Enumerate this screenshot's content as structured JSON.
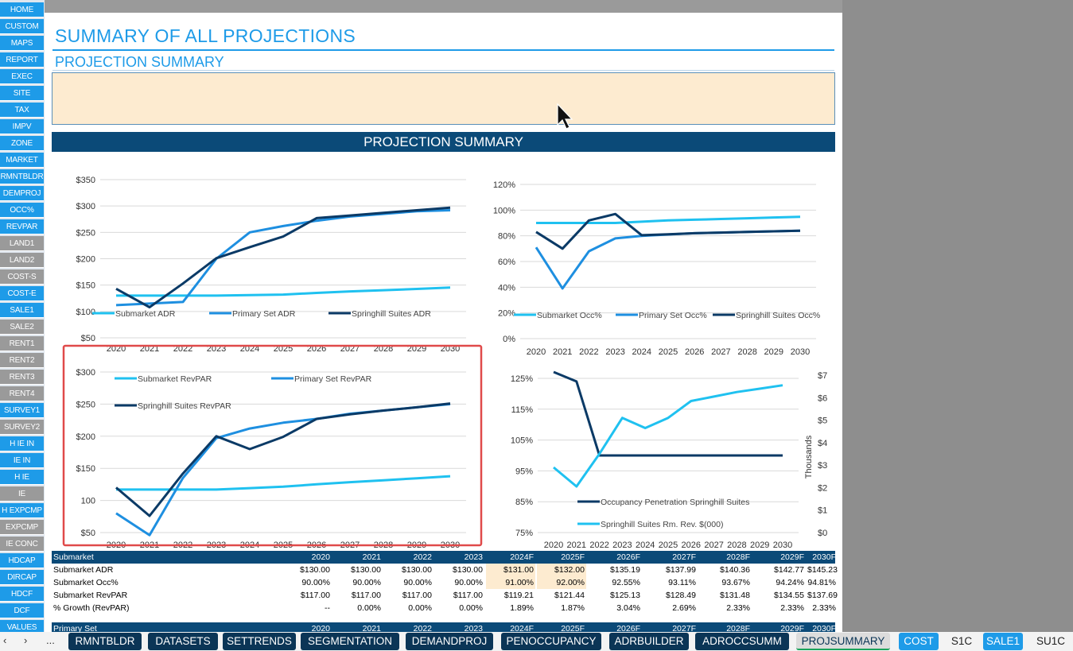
{
  "nav": [
    {
      "label": "HOME",
      "c": "blue"
    },
    {
      "label": "CUSTOM",
      "c": "blue"
    },
    {
      "label": "MAPS",
      "c": "blue"
    },
    {
      "label": "REPORT",
      "c": "blue"
    },
    {
      "label": "EXEC",
      "c": "blue"
    },
    {
      "label": "SITE",
      "c": "blue"
    },
    {
      "label": "TAX",
      "c": "blue"
    },
    {
      "label": "IMPV",
      "c": "blue"
    },
    {
      "label": "ZONE",
      "c": "blue"
    },
    {
      "label": "MARKET",
      "c": "blue"
    },
    {
      "label": "RMNTBLDR",
      "c": "blue"
    },
    {
      "label": "DEMPROJ",
      "c": "blue"
    },
    {
      "label": "OCC%",
      "c": "blue"
    },
    {
      "label": "REVPAR",
      "c": "blue"
    },
    {
      "label": "LAND1",
      "c": "gray"
    },
    {
      "label": "LAND2",
      "c": "gray"
    },
    {
      "label": "COST-S",
      "c": "gray"
    },
    {
      "label": "COST-E",
      "c": "blue"
    },
    {
      "label": "SALE1",
      "c": "blue"
    },
    {
      "label": "SALE2",
      "c": "gray"
    },
    {
      "label": "RENT1",
      "c": "gray"
    },
    {
      "label": "RENT2",
      "c": "gray"
    },
    {
      "label": "RENT3",
      "c": "gray"
    },
    {
      "label": "RENT4",
      "c": "gray"
    },
    {
      "label": "SURVEY1",
      "c": "blue"
    },
    {
      "label": "SURVEY2",
      "c": "gray"
    },
    {
      "label": "H IE IN",
      "c": "blue"
    },
    {
      "label": "IE IN",
      "c": "blue"
    },
    {
      "label": "H IE",
      "c": "blue"
    },
    {
      "label": "IE",
      "c": "gray"
    },
    {
      "label": "H EXPCMP",
      "c": "blue"
    },
    {
      "label": "EXPCMP",
      "c": "gray"
    },
    {
      "label": "IE CONC",
      "c": "gray"
    },
    {
      "label": "HDCAP",
      "c": "blue"
    },
    {
      "label": "DIRCAP",
      "c": "blue"
    },
    {
      "label": "HDCF",
      "c": "blue"
    },
    {
      "label": "DCF",
      "c": "blue"
    },
    {
      "label": "VALUES",
      "c": "blue"
    }
  ],
  "header": {
    "title": "SUMMARY OF ALL PROJECTIONS",
    "subtitle": "PROJECTION SUMMARY",
    "banner": "PROJECTION SUMMARY"
  },
  "colors": {
    "submarket": "#1fc1f0",
    "primary": "#1e8fe0",
    "springhill": "#0b3a66",
    "accent": "#1e9be8"
  },
  "chart_data": [
    {
      "type": "line",
      "x": [
        2020,
        2021,
        2022,
        2023,
        2024,
        2025,
        2026,
        2027,
        2028,
        2029,
        2030
      ],
      "ylim": [
        50,
        350
      ],
      "yticks": [
        "$350",
        "$300",
        "$250",
        "$200",
        "$150",
        "$100",
        "$50"
      ],
      "series": [
        {
          "name": "Submarket ADR",
          "values": [
            130,
            130,
            130,
            130,
            131,
            132,
            135.19,
            137.99,
            140.36,
            142.77,
            145.23
          ]
        },
        {
          "name": "Primary Set ADR",
          "values": [
            112,
            115,
            118,
            200,
            250,
            262,
            272,
            280,
            285,
            290,
            292
          ]
        },
        {
          "name": "Springhill Suites ADR",
          "values": [
            143,
            108,
            153,
            201,
            222,
            242,
            277,
            282,
            287,
            292,
            297
          ]
        }
      ]
    },
    {
      "type": "line",
      "x": [
        2020,
        2021,
        2022,
        2023,
        2024,
        2025,
        2026,
        2027,
        2028,
        2029,
        2030
      ],
      "ylim": [
        0,
        120
      ],
      "yticks": [
        "120%",
        "100%",
        "80%",
        "60%",
        "40%",
        "20%",
        "0%"
      ],
      "series": [
        {
          "name": "Submarket Occ%",
          "values": [
            90,
            90,
            90,
            90,
            91,
            92,
            92.55,
            93.11,
            93.67,
            94.24,
            94.81
          ]
        },
        {
          "name": "Primary Set Occ%",
          "values": [
            71,
            39,
            68,
            78,
            80,
            81,
            82,
            82.5,
            83,
            83.5,
            84
          ]
        },
        {
          "name": "Springhill Suites Occ%",
          "values": [
            83,
            70,
            92,
            97,
            80.5,
            81.2,
            82,
            82.5,
            83,
            83.5,
            84
          ]
        }
      ]
    },
    {
      "type": "line",
      "x": [
        2020,
        2021,
        2022,
        2023,
        2024,
        2025,
        2026,
        2027,
        2028,
        2029,
        2030
      ],
      "ylim": [
        50,
        300
      ],
      "yticks": [
        "$300",
        "$250",
        "$200",
        "$150",
        "100",
        "$50"
      ],
      "series": [
        {
          "name": "Submarket RevPAR",
          "values": [
            117,
            117,
            117,
            117,
            119.21,
            121.44,
            125.13,
            128.49,
            131.48,
            134.55,
            137.69
          ]
        },
        {
          "name": "Primary Set RevPAR",
          "values": [
            80,
            46,
            135,
            197,
            212,
            221,
            227,
            235,
            240,
            245,
            250
          ]
        },
        {
          "name": "Springhill Suites RevPAR",
          "values": [
            120,
            76,
            142,
            200,
            180,
            199,
            227,
            234,
            240,
            245,
            251
          ]
        }
      ]
    },
    {
      "type": "line",
      "x": [
        2020,
        2021,
        2022,
        2023,
        2024,
        2025,
        2026,
        2027,
        2028,
        2029,
        2030
      ],
      "ylim": [
        75,
        125
      ],
      "yticks": [
        "125%",
        "115%",
        "105%",
        "95%",
        "85%",
        "75%"
      ],
      "y2lim": [
        0,
        7
      ],
      "y2ticks": [
        "$7",
        "$6",
        "$5",
        "$4",
        "$3",
        "$2",
        "$1",
        "$0"
      ],
      "y2label": "Thousands",
      "series": [
        {
          "name": "Occupancy Penetration Springhill Suites",
          "axis": "left",
          "values": [
            128,
            124,
            100,
            100,
            100,
            100,
            100,
            100,
            100,
            100,
            100
          ]
        },
        {
          "name": "Springhill Suites Rm. Rev. $(000)",
          "axis": "right",
          "values": [
            2.9,
            2.05,
            3.5,
            5.1,
            4.65,
            5.1,
            5.85,
            6.05,
            6.25,
            6.4,
            6.55
          ]
        }
      ]
    }
  ],
  "table": {
    "header": [
      "Submarket",
      "2020",
      "2021",
      "2022",
      "2023",
      "2024F",
      "2025F",
      "2026F",
      "2027F",
      "2028F",
      "2029F",
      "2030F"
    ],
    "rows": [
      [
        "Submarket ADR",
        "$130.00",
        "$130.00",
        "$130.00",
        "$130.00",
        "$131.00",
        "$132.00",
        "$135.19",
        "$137.99",
        "$140.36",
        "$142.77",
        "$145.23"
      ],
      [
        "Submarket Occ%",
        "90.00%",
        "90.00%",
        "90.00%",
        "90.00%",
        "91.00%",
        "92.00%",
        "92.55%",
        "93.11%",
        "93.67%",
        "94.24%",
        "94.81%"
      ],
      [
        "Submarket RevPAR",
        "$117.00",
        "$117.00",
        "$117.00",
        "$117.00",
        "$119.21",
        "$121.44",
        "$125.13",
        "$128.49",
        "$131.48",
        "$134.55",
        "$137.69"
      ],
      [
        "% Growth (RevPAR)",
        "--",
        "0.00%",
        "0.00%",
        "0.00%",
        "1.89%",
        "1.87%",
        "3.04%",
        "2.69%",
        "2.33%",
        "2.33%",
        "2.33%"
      ]
    ],
    "next_header": [
      "Primary Set",
      "2020",
      "2021",
      "2022",
      "2023",
      "2024F",
      "2025F",
      "2026F",
      "2027F",
      "2028F",
      "2029F",
      "2030F"
    ]
  },
  "tabs": [
    {
      "label": "RMNTBLDR",
      "style": "dark"
    },
    {
      "label": "DATASETS",
      "style": "dark"
    },
    {
      "label": "SETTRENDS",
      "style": "dark"
    },
    {
      "label": "SEGMENTATION",
      "style": "dark"
    },
    {
      "label": "DEMANDPROJ",
      "style": "dark"
    },
    {
      "label": "PENOCCUPANCY",
      "style": "dark"
    },
    {
      "label": "ADRBUILDER",
      "style": "dark"
    },
    {
      "label": "ADROCCSUMM",
      "style": "dark"
    },
    {
      "label": "PROJSUMMARY",
      "style": "active"
    },
    {
      "label": "COST",
      "style": "blue"
    },
    {
      "label": "S1C",
      "style": "plain"
    },
    {
      "label": "SALE1",
      "style": "blue"
    },
    {
      "label": "SU1C",
      "style": "plain"
    }
  ],
  "tabnav": {
    "prev": "‹",
    "next": "›",
    "more": "..."
  }
}
